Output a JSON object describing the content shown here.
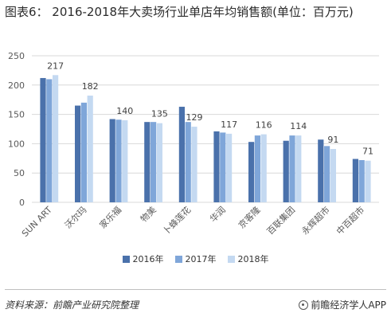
{
  "header": {
    "title": "图表6： 2016-2018年大卖场行业单店年均销售额(单位：百万元)"
  },
  "footer": {
    "source": "资料来源：前瞻产业研究院整理",
    "brand": "前瞻经济学人APP"
  },
  "colors": {
    "s2016": "#4a71ab",
    "s2017": "#7fa6d9",
    "s2018": "#c4d9f1",
    "grid": "#d9d9d9",
    "axis_text": "#595959"
  },
  "chart_data": {
    "type": "bar",
    "title": "图表6： 2016-2018年大卖场行业单店年均销售额(单位：百万元)",
    "xlabel": "",
    "ylabel": "",
    "ylim": [
      0,
      250
    ],
    "yticks": [
      0,
      50,
      100,
      150,
      200,
      250
    ],
    "grid": true,
    "legend_position": "bottom",
    "categories": [
      "SUN ART",
      "沃尔玛",
      "家乐福",
      "物美",
      "卜蜂莲花",
      "华润",
      "京客隆",
      "百联集团",
      "永辉超市",
      "中百超市"
    ],
    "series": [
      {
        "name": "2016年",
        "values": [
          212,
          165,
          142,
          137,
          163,
          121,
          103,
          105,
          107,
          74
        ]
      },
      {
        "name": "2017年",
        "values": [
          210,
          170,
          141,
          137,
          137,
          119,
          114,
          114,
          96,
          72
        ]
      },
      {
        "name": "2018年",
        "values": [
          217,
          182,
          140,
          135,
          129,
          117,
          116,
          114,
          91,
          71
        ]
      }
    ],
    "data_labels": [
      "217",
      "182",
      "140",
      "135",
      "129",
      "117",
      "116",
      "114",
      "91",
      "71"
    ]
  }
}
